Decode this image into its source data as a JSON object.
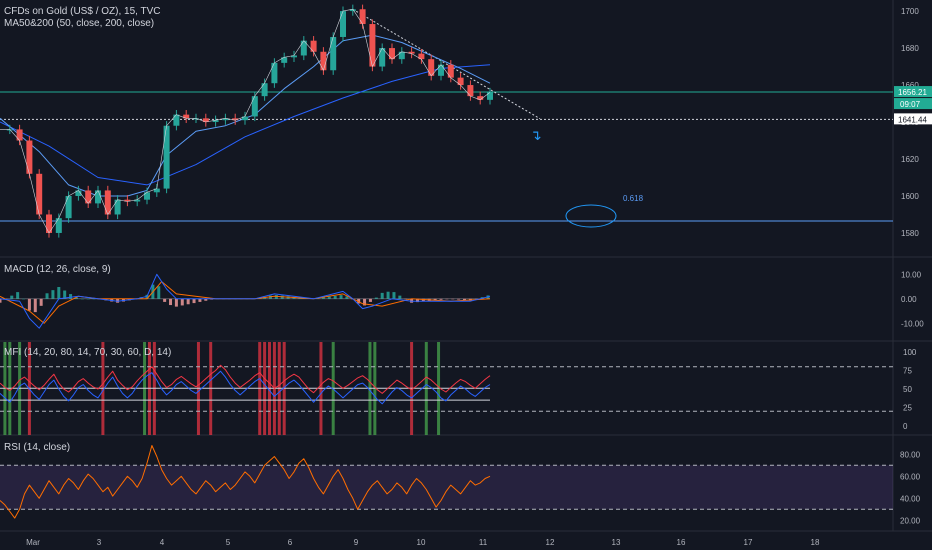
{
  "header": {
    "title": "CFDs on Gold (US$ / OZ), 15, TVC",
    "ma_label": "MA50&200 (50, close, 200, close)"
  },
  "chart_data": {
    "type": "line",
    "price_pane": {
      "yticks": [
        1580,
        1600,
        1620,
        1640,
        1660,
        1680,
        1700
      ],
      "ylim": [
        1567,
        1706
      ],
      "current_price": "1656.21",
      "countdown": "09:07",
      "support_price": "1641.44",
      "support_level": 1641.44,
      "lower_line_level": 1586.5,
      "resistance_level": 1656.21,
      "fib_label": "0.618",
      "arrow_glyph": "↴",
      "close_path": [
        [
          0,
          1636
        ],
        [
          2,
          1636
        ],
        [
          4,
          1630
        ],
        [
          6,
          1612
        ],
        [
          8,
          1590
        ],
        [
          10,
          1580
        ],
        [
          12,
          1588
        ],
        [
          14,
          1600
        ],
        [
          16,
          1603
        ],
        [
          18,
          1596
        ],
        [
          20,
          1603
        ],
        [
          22,
          1590
        ],
        [
          24,
          1598
        ],
        [
          26,
          1597
        ],
        [
          28,
          1598
        ],
        [
          30,
          1602
        ],
        [
          32,
          1604
        ],
        [
          34,
          1638
        ],
        [
          36,
          1644
        ],
        [
          38,
          1642
        ],
        [
          40,
          1642
        ],
        [
          42,
          1640
        ],
        [
          44,
          1641
        ],
        [
          46,
          1642
        ],
        [
          48,
          1641
        ],
        [
          50,
          1643
        ],
        [
          52,
          1654
        ],
        [
          54,
          1661
        ],
        [
          56,
          1672
        ],
        [
          58,
          1675
        ],
        [
          60,
          1676
        ],
        [
          62,
          1684
        ],
        [
          64,
          1678
        ],
        [
          66,
          1668
        ],
        [
          68,
          1686
        ],
        [
          70,
          1700
        ],
        [
          72,
          1701
        ],
        [
          74,
          1693
        ],
        [
          76,
          1670
        ],
        [
          78,
          1680
        ],
        [
          80,
          1674
        ],
        [
          82,
          1678
        ],
        [
          84,
          1677
        ],
        [
          86,
          1674
        ],
        [
          88,
          1665
        ],
        [
          90,
          1671
        ],
        [
          92,
          1664
        ],
        [
          94,
          1660
        ],
        [
          96,
          1654
        ],
        [
          98,
          1652
        ],
        [
          100,
          1656
        ]
      ],
      "ma50_path": [
        [
          0,
          1642
        ],
        [
          8,
          1624
        ],
        [
          14,
          1606
        ],
        [
          20,
          1600
        ],
        [
          26,
          1600
        ],
        [
          30,
          1603
        ],
        [
          34,
          1622
        ],
        [
          40,
          1635
        ],
        [
          46,
          1638
        ],
        [
          52,
          1644
        ],
        [
          58,
          1658
        ],
        [
          64,
          1670
        ],
        [
          70,
          1684
        ],
        [
          76,
          1687
        ],
        [
          82,
          1683
        ],
        [
          88,
          1676
        ],
        [
          94,
          1669
        ],
        [
          100,
          1661
        ]
      ],
      "ma200_path": [
        [
          0,
          1640
        ],
        [
          10,
          1627
        ],
        [
          20,
          1610
        ],
        [
          30,
          1606
        ],
        [
          40,
          1617
        ],
        [
          50,
          1632
        ],
        [
          60,
          1643
        ],
        [
          70,
          1653
        ],
        [
          80,
          1662
        ],
        [
          90,
          1669
        ],
        [
          100,
          1671
        ]
      ]
    },
    "macd_pane": {
      "label": "MACD (12, 26, close, 9)",
      "yticks": [
        "10.00",
        "0.00",
        "-10.00"
      ],
      "ytick_values": [
        10,
        0,
        -10
      ],
      "ylim": [
        -16,
        15
      ],
      "macd_path": [
        [
          0,
          0
        ],
        [
          4,
          -1
        ],
        [
          6,
          -8
        ],
        [
          8,
          -12
        ],
        [
          10,
          -6
        ],
        [
          12,
          0
        ],
        [
          16,
          1
        ],
        [
          20,
          0
        ],
        [
          24,
          -1
        ],
        [
          28,
          0
        ],
        [
          30,
          1
        ],
        [
          32,
          10
        ],
        [
          34,
          4
        ],
        [
          36,
          0
        ],
        [
          40,
          0
        ],
        [
          46,
          0
        ],
        [
          52,
          0
        ],
        [
          56,
          2
        ],
        [
          60,
          1
        ],
        [
          64,
          0
        ],
        [
          68,
          2
        ],
        [
          70,
          3
        ],
        [
          72,
          0
        ],
        [
          74,
          -4
        ],
        [
          76,
          -3
        ],
        [
          80,
          0
        ],
        [
          84,
          -1
        ],
        [
          88,
          -1
        ],
        [
          92,
          -1
        ],
        [
          96,
          -1
        ],
        [
          100,
          1
        ]
      ],
      "signal_path": [
        [
          0,
          1
        ],
        [
          6,
          -5
        ],
        [
          9,
          -10
        ],
        [
          12,
          -3
        ],
        [
          16,
          1
        ],
        [
          20,
          0
        ],
        [
          30,
          0
        ],
        [
          33,
          7
        ],
        [
          36,
          2
        ],
        [
          44,
          0
        ],
        [
          52,
          0
        ],
        [
          56,
          1
        ],
        [
          64,
          0
        ],
        [
          70,
          2
        ],
        [
          74,
          -2
        ],
        [
          78,
          -3
        ],
        [
          84,
          0
        ],
        [
          92,
          -1
        ],
        [
          100,
          0
        ]
      ]
    },
    "mfi_pane": {
      "label": "MFI (14, 20, 80, 14, 70, 30, 60, D, 14)",
      "yticks": [
        "100",
        "75",
        "50",
        "25",
        "0"
      ],
      "ytick_values": [
        100,
        75,
        50,
        25,
        0
      ],
      "ylim": [
        -8,
        108
      ],
      "bands": [
        80,
        20
      ],
      "level_lines": [
        51,
        35
      ],
      "series": [
        {
          "color": "#f23645",
          "values": [
            58,
            52,
            48,
            54,
            62,
            66,
            60,
            54,
            49,
            55,
            63,
            70,
            58,
            50,
            46,
            52,
            60,
            64,
            58,
            53,
            50,
            57,
            66,
            74,
            62,
            55,
            49,
            53,
            61,
            68,
            74,
            80,
            70,
            60,
            52,
            56,
            63,
            67,
            62,
            57,
            53,
            58,
            64,
            70,
            75,
            82,
            76,
            66,
            58,
            52,
            57,
            62,
            68,
            72,
            64,
            58,
            51,
            55,
            61,
            66,
            70,
            66,
            58,
            50,
            45,
            52,
            59,
            64,
            61,
            56,
            51,
            55,
            60,
            65,
            68,
            63,
            56,
            49,
            44,
            50,
            56,
            62,
            58,
            53,
            49,
            54,
            60,
            66,
            62,
            56,
            50,
            46,
            52,
            58,
            63,
            60,
            55,
            51,
            57,
            63,
            68
          ]
        },
        {
          "color": "#2962ff",
          "values": [
            44,
            38,
            32,
            42,
            54,
            58,
            50,
            42,
            36,
            46,
            56,
            62,
            50,
            40,
            34,
            42,
            52,
            56,
            48,
            42,
            38,
            48,
            58,
            66,
            54,
            44,
            38,
            44,
            54,
            62,
            68,
            72,
            62,
            50,
            42,
            48,
            56,
            60,
            54,
            48,
            44,
            50,
            56,
            62,
            68,
            74,
            66,
            56,
            48,
            42,
            48,
            54,
            60,
            64,
            56,
            48,
            40,
            46,
            52,
            58,
            62,
            56,
            48,
            40,
            32,
            40,
            48,
            54,
            50,
            44,
            38,
            44,
            50,
            56,
            58,
            52,
            44,
            36,
            30,
            38,
            46,
            52,
            48,
            42,
            38,
            44,
            50,
            56,
            52,
            46,
            38,
            34,
            42,
            48,
            54,
            50,
            44,
            40,
            46,
            52,
            56
          ]
        }
      ],
      "highlights": [
        {
          "x": 1,
          "color": "#4caf50"
        },
        {
          "x": 2,
          "color": "#4caf50"
        },
        {
          "x": 4,
          "color": "#4caf50"
        },
        {
          "x": 6,
          "color": "#f23645"
        },
        {
          "x": 21,
          "color": "#f23645"
        },
        {
          "x": 29.5,
          "color": "#4caf50"
        },
        {
          "x": 30.5,
          "color": "#f23645"
        },
        {
          "x": 31.5,
          "color": "#f23645"
        },
        {
          "x": 40.5,
          "color": "#f23645"
        },
        {
          "x": 43,
          "color": "#f23645"
        },
        {
          "x": 53,
          "color": "#f23645"
        },
        {
          "x": 54,
          "color": "#f23645"
        },
        {
          "x": 55,
          "color": "#f23645"
        },
        {
          "x": 56,
          "color": "#f23645"
        },
        {
          "x": 57,
          "color": "#f23645"
        },
        {
          "x": 58,
          "color": "#f23645"
        },
        {
          "x": 65.5,
          "color": "#f23645"
        },
        {
          "x": 68,
          "color": "#4caf50"
        },
        {
          "x": 75.5,
          "color": "#4caf50"
        },
        {
          "x": 76.5,
          "color": "#4caf50"
        },
        {
          "x": 84,
          "color": "#f23645"
        },
        {
          "x": 87,
          "color": "#4caf50"
        },
        {
          "x": 89.5,
          "color": "#4caf50"
        }
      ]
    },
    "rsi_pane": {
      "label": "RSI (14, close)",
      "yticks": [
        "80.00",
        "60.00",
        "40.00",
        "20.00"
      ],
      "ytick_values": [
        80,
        60,
        40,
        20
      ],
      "ylim": [
        13,
        93
      ],
      "band_upper": 70,
      "band_lower": 30,
      "values": [
        38,
        34,
        28,
        22,
        30,
        44,
        52,
        46,
        40,
        48,
        56,
        50,
        44,
        52,
        58,
        54,
        48,
        56,
        62,
        58,
        52,
        46,
        50,
        42,
        48,
        54,
        60,
        56,
        50,
        58,
        72,
        88,
        78,
        66,
        58,
        52,
        56,
        60,
        54,
        48,
        44,
        50,
        56,
        52,
        46,
        50,
        54,
        48,
        52,
        58,
        64,
        60,
        54,
        62,
        70,
        74,
        78,
        72,
        66,
        58,
        64,
        72,
        76,
        68,
        58,
        50,
        44,
        52,
        60,
        66,
        58,
        48,
        40,
        30,
        38,
        46,
        52,
        56,
        50,
        44,
        48,
        54,
        50,
        44,
        52,
        58,
        54,
        48,
        40,
        32,
        38,
        46,
        52,
        48,
        44,
        50,
        56,
        52,
        54,
        58,
        60
      ]
    },
    "xaxis": {
      "labels": [
        "Mar",
        "3",
        "4",
        "5",
        "6",
        "9",
        "10",
        "11",
        "12",
        "13",
        "16",
        "17",
        "18"
      ],
      "positions": [
        33,
        99,
        162,
        228,
        290,
        356,
        421,
        483,
        550,
        616,
        681,
        748,
        815
      ]
    }
  }
}
